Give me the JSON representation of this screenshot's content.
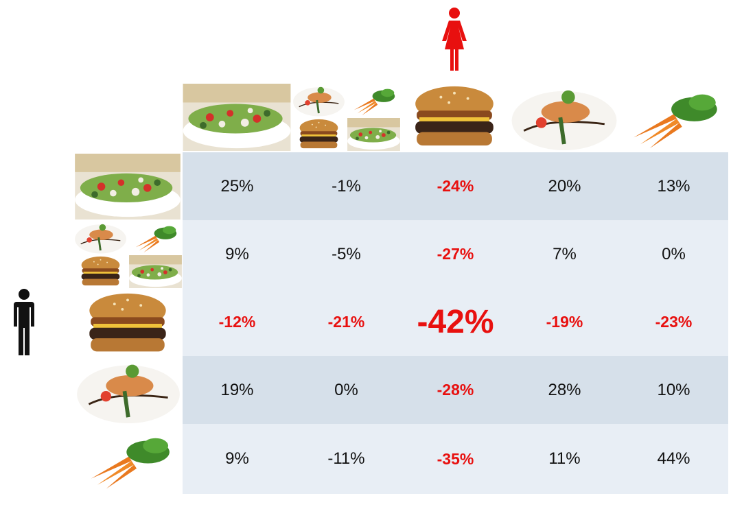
{
  "figures": {
    "female_icon": "female-figure-icon",
    "male_icon": "male-figure-icon",
    "female_color": "#e8100f",
    "male_color": "#111111"
  },
  "foods": [
    "salad",
    "mixed-plate",
    "burger",
    "chicken-plate",
    "carrots"
  ],
  "colors": {
    "row_dark": "#d6e0ea",
    "row_light": "#e8eef5",
    "negative_text": "#e8100f",
    "normal_text": "#111111"
  },
  "matrix": [
    [
      "25%",
      "-1%",
      "-24%",
      "20%",
      "13%"
    ],
    [
      "9%",
      "-5%",
      "-27%",
      "7%",
      "0%"
    ],
    [
      "-12%",
      "-21%",
      "-42%",
      "-19%",
      "-23%"
    ],
    [
      "19%",
      "0%",
      "-28%",
      "28%",
      "10%"
    ],
    [
      "9%",
      "-11%",
      "-35%",
      "11%",
      "44%"
    ]
  ]
}
